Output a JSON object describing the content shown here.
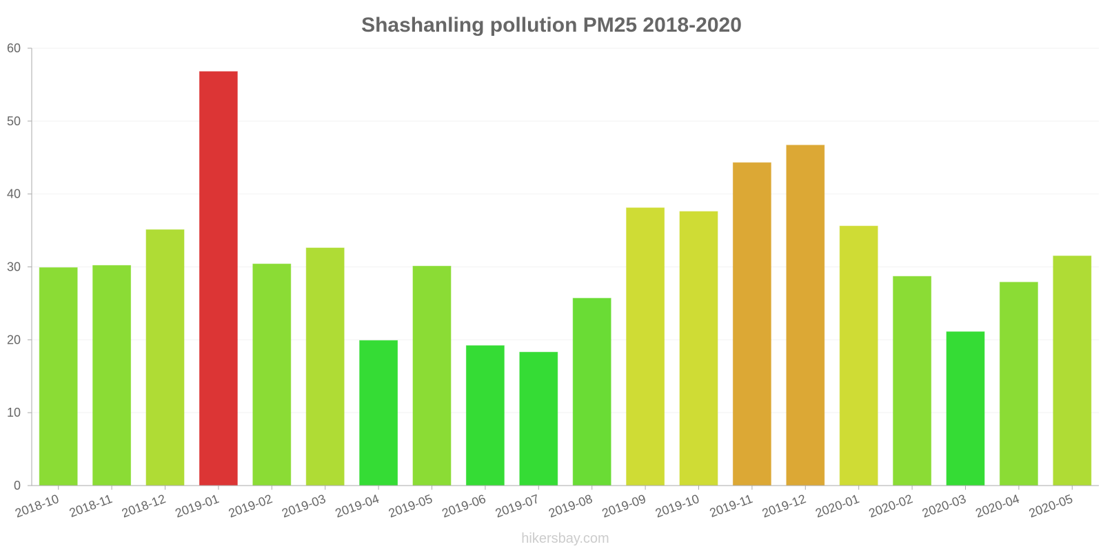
{
  "watermark": "hikersbay.com",
  "chart_data": {
    "type": "bar",
    "title": "Shashanling pollution PM25 2018-2020",
    "xlabel": "",
    "ylabel": "",
    "ylim": [
      0,
      60
    ],
    "yticks": [
      "0",
      "10",
      "20",
      "30",
      "40",
      "50",
      "60"
    ],
    "grid": true,
    "categories": [
      "2018-10",
      "2018-11",
      "2018-12",
      "2019-01",
      "2019-02",
      "2019-03",
      "2019-04",
      "2019-05",
      "2019-06",
      "2019-07",
      "2019-08",
      "2019-09",
      "2019-10",
      "2019-11",
      "2019-12",
      "2020-01",
      "2020-02",
      "2020-03",
      "2020-04",
      "2020-05"
    ],
    "values": [
      29.9,
      30.2,
      35.1,
      56.8,
      30.4,
      32.6,
      19.9,
      30.1,
      19.2,
      18.3,
      25.7,
      38.1,
      37.6,
      44.3,
      46.7,
      35.6,
      28.7,
      21.1,
      27.9,
      31.5
    ],
    "colors": [
      "#8bdc35",
      "#8bdc35",
      "#afdc35",
      "#dc3535",
      "#8bdc35",
      "#afdc35",
      "#35dc35",
      "#8bdc35",
      "#35dc35",
      "#35dc35",
      "#6adc35",
      "#cfdc35",
      "#cfdc35",
      "#dca835",
      "#dca835",
      "#cfdc35",
      "#8bdc35",
      "#35dc35",
      "#8bdc35",
      "#afdc35"
    ]
  }
}
